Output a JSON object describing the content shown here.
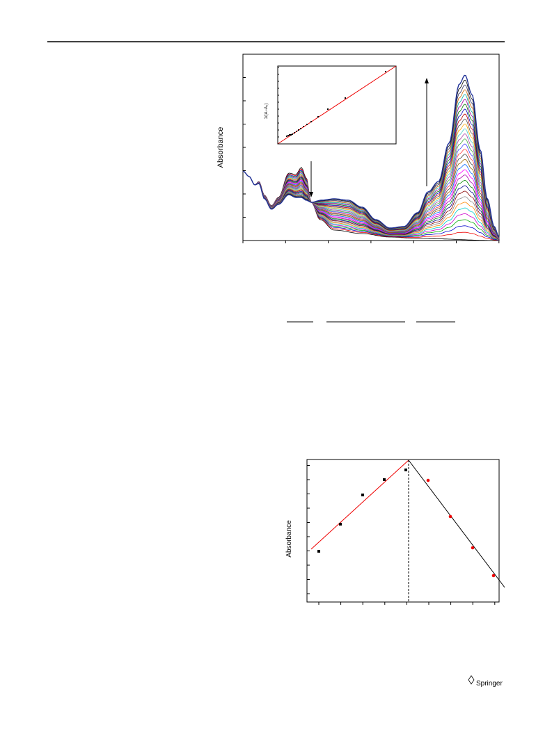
{
  "figures": [
    {
      "y_label": "Absorbance",
      "inset_y_label": "1/(A−A₀)"
    },
    {
      "y_label": "Absorbance"
    }
  ],
  "footer": {
    "publisher": "Springer"
  }
}
